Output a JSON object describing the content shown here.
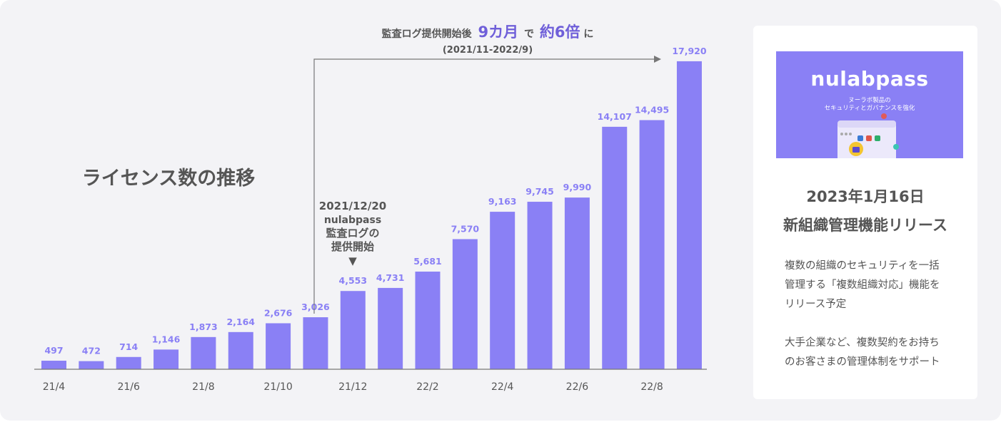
{
  "chart_data": {
    "type": "bar",
    "title": "ライセンス数の推移",
    "categories": [
      "21/4",
      "21/5",
      "21/6",
      "21/7",
      "21/8",
      "21/9",
      "21/10",
      "21/11",
      "21/12",
      "22/1",
      "22/2",
      "22/3",
      "22/4",
      "22/5",
      "22/6",
      "22/7",
      "22/8",
      "22/9"
    ],
    "values": [
      497,
      472,
      714,
      1146,
      1873,
      2164,
      2676,
      3026,
      4553,
      4731,
      5681,
      7570,
      9163,
      9745,
      9990,
      14107,
      14495,
      17920
    ],
    "value_labels": [
      "497",
      "472",
      "714",
      "1,146",
      "1,873",
      "2,164",
      "2,676",
      "3,026",
      "4,553",
      "4,731",
      "5,681",
      "7,570",
      "9,163",
      "9,745",
      "9,990",
      "14,107",
      "14,495",
      "17,920"
    ],
    "x_tick_labels": [
      "21/4",
      "21/6",
      "21/8",
      "21/10",
      "21/12",
      "22/2",
      "22/4",
      "22/6",
      "22/8"
    ],
    "ylim": [
      0,
      18000
    ],
    "grid": false,
    "bar_color": "#8a80f5"
  },
  "growth_annotation": {
    "prefix": "監査ログ提供開始後",
    "period": "9カ月",
    "mid": "で",
    "growth": "約6倍",
    "suffix": "に",
    "range": "(2021/11-2022/9)"
  },
  "event_annotation": {
    "date": "2021/12/20",
    "product": "nulabpass",
    "line1": "監査ログの",
    "line2": "提供開始",
    "marker": "▼"
  },
  "side_panel": {
    "banner": {
      "logo": "nulabpass",
      "subtitle1": "ヌーラボ製品の",
      "subtitle2": "セキュリティとガバナンスを強化",
      "bg_color": "#8a80f5"
    },
    "date": "2023年1月16日",
    "title": "新組織管理機能リリース",
    "description1": "複数の組織のセキュリティを一括\n管理する「複数組織対応」機能を\nリリース予定",
    "description2": "大手企業など、複数契約をお持ち\nのお客さまの管理体制をサポート"
  }
}
